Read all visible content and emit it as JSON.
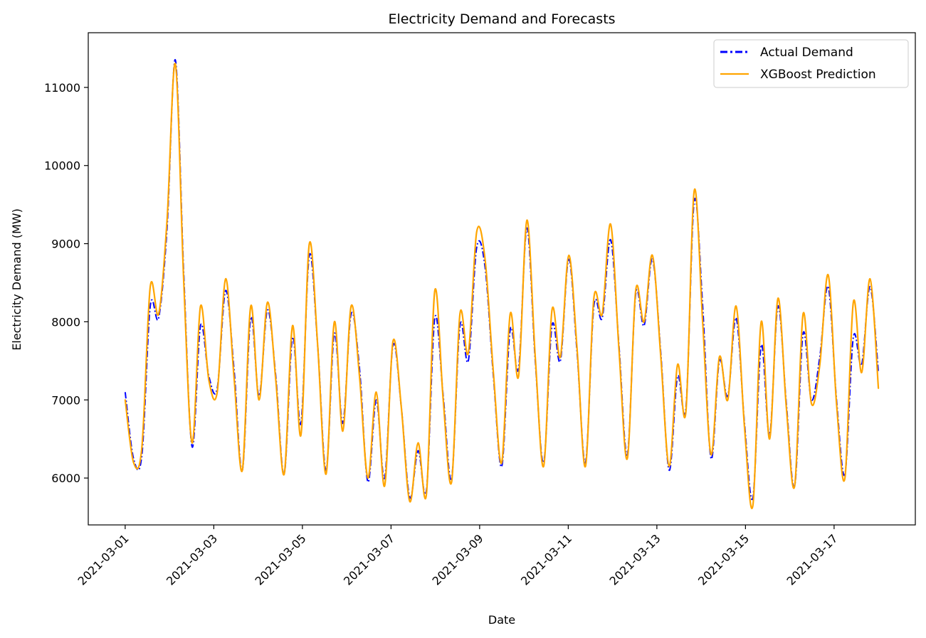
{
  "chart_data": {
    "type": "line",
    "title": "Electricity Demand and Forecasts",
    "xlabel": "Date",
    "ylabel": "Electricity Demand (MW)",
    "x_start": "2021-03-01",
    "x_end": "2021-03-18",
    "xlim": [
      "2021-02-28T04:00",
      "2021-03-18T20:00"
    ],
    "ylim": [
      5400,
      11700
    ],
    "x_ticks": [
      "2021-03-01",
      "2021-03-03",
      "2021-03-05",
      "2021-03-07",
      "2021-03-09",
      "2021-03-11",
      "2021-03-13",
      "2021-03-15",
      "2021-03-17"
    ],
    "y_ticks": [
      6000,
      7000,
      8000,
      9000,
      10000,
      11000
    ],
    "grid": false,
    "legend_position": "upper right",
    "series": [
      {
        "name": "Actual Demand",
        "color": "#0000ff",
        "style": "dashdot",
        "values": [
          7100,
          6250,
          6300,
          8200,
          8050,
          9200,
          11350,
          8600,
          6400,
          7950,
          7300,
          7150,
          8400,
          7400,
          6100,
          8050,
          7050,
          8150,
          7300,
          6050,
          7800,
          6700,
          8850,
          7700,
          6100,
          7850,
          6700,
          8100,
          7400,
          5950,
          7000,
          6000,
          7700,
          6900,
          5750,
          6350,
          5850,
          8050,
          7050,
          6000,
          7950,
          7500,
          8950,
          8700,
          7300,
          6150,
          7900,
          7400,
          9200,
          7500,
          6200,
          7950,
          7500,
          8800,
          7600,
          6200,
          8200,
          8050,
          9050,
          7700,
          6300,
          8350,
          7950,
          8800,
          7600,
          6100,
          7300,
          6900,
          9550,
          8200,
          6250,
          7500,
          7050,
          8050,
          6700,
          5750,
          7700,
          6550,
          8200,
          6950,
          5900,
          7850,
          7000,
          7550,
          8450,
          7000,
          6050,
          7800,
          7450,
          8450,
          7350
        ]
      },
      {
        "name": "XGBoost Prediction",
        "color": "#ffa500",
        "style": "solid",
        "values": [
          7000,
          6200,
          6400,
          8450,
          8100,
          9300,
          11300,
          8500,
          6450,
          8200,
          7250,
          7100,
          8550,
          7300,
          6100,
          8200,
          7000,
          8250,
          7250,
          6050,
          7950,
          6550,
          9000,
          7700,
          6050,
          8000,
          6600,
          8200,
          7300,
          6000,
          7100,
          5900,
          7750,
          6900,
          5700,
          6450,
          5800,
          8400,
          7000,
          5950,
          8100,
          7600,
          9150,
          8800,
          7350,
          6200,
          8100,
          7300,
          9300,
          7550,
          6150,
          8150,
          7550,
          8850,
          7650,
          6150,
          8300,
          8100,
          9250,
          7650,
          6250,
          8400,
          8000,
          8850,
          7550,
          6150,
          7450,
          6850,
          9680,
          8000,
          6300,
          7550,
          7000,
          8200,
          6650,
          5650,
          8000,
          6500,
          8300,
          6900,
          5900,
          8100,
          6950,
          7450,
          8600,
          6950,
          6000,
          8250,
          7350,
          8550,
          7150
        ]
      }
    ]
  }
}
